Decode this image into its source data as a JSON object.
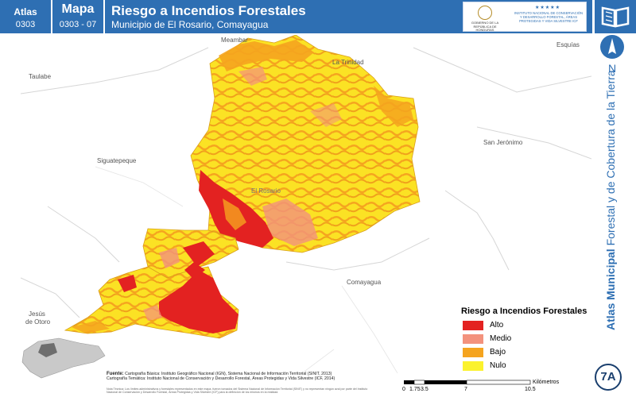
{
  "header": {
    "atlas_label": "Atlas",
    "atlas_code": "0303",
    "mapa_label": "Mapa",
    "mapa_code": "0303 - 07",
    "title": "Riesgo a Incendios Forestales",
    "subtitle": "Municipio de El Rosario, Comayagua"
  },
  "logos": {
    "government_text": "GOBIERNO DE LA REPÚBLICA DE HONDURAS",
    "institute_stars": "★★★★★",
    "institute_text": "INSTITUTO NACIONAL DE CONSERVACIÓN Y DESARROLLO FORESTAL, ÁREAS PROTEGIDAS Y VIDA SILVESTRE ICF"
  },
  "sidebar": {
    "north_letter": "N",
    "vertical_title_bold": "Atlas Municipal",
    "vertical_title_rest": " Forestal y de Cobertura de la Tierra",
    "badge": "7A"
  },
  "places": {
    "meambar": "Meambar",
    "la_trinidad": "La Trinidad",
    "esquias": "Esquías",
    "taulabe": "Taulabe",
    "siguatepeque": "Siguatepeque",
    "el_rosario": "El Rosario",
    "san_jeronimo": "San Jerónimo",
    "comayagua": "Comayagua",
    "jesus_de_otoro_1": "Jesús",
    "jesus_de_otoro_2": "de Otoro"
  },
  "legend": {
    "title": "Riesgo a Incendios Forestales",
    "items": [
      {
        "label": "Alto",
        "color": "#e32221"
      },
      {
        "label": "Medio",
        "color": "#f3927d"
      },
      {
        "label": "Bajo",
        "color": "#f5a41f"
      },
      {
        "label": "Nulo",
        "color": "#fbf22d"
      }
    ]
  },
  "sources": {
    "label": "Fuente:",
    "line1": "Cartografía Básica: Instituto Geográfico Nacional (IGN), Sistema Nacional de Información Territorial (SINIT, 2013)",
    "line2": "Cartografía Temática: Instituto Nacional de Conservación y Desarrollo Forestal, Áreas Protegidas y Vida Silvestre (ICF, 2014)",
    "nota": "Nota Técnica: Los límites administrativos y forestales representados en este mapa, fueron tomados del Sistema Nacional de Información Territorial (SINIT) y no representan ningún aval por parte del Instituto Nacional de Conservación y Desarrollo Forestal, Áreas Protegidas y Vida Silvestre (ICF) para la definición de los mismos en la realidad."
  },
  "scale": {
    "ticks": [
      "0",
      "1.75",
      "3.5",
      "7",
      "10.5"
    ],
    "units": "Kilómetros"
  },
  "colors": {
    "header_blue": "#2e6fb3",
    "alto": "#e32221",
    "medio": "#f3927d",
    "bajo": "#f5a41f",
    "nulo": "#fbf22d"
  }
}
